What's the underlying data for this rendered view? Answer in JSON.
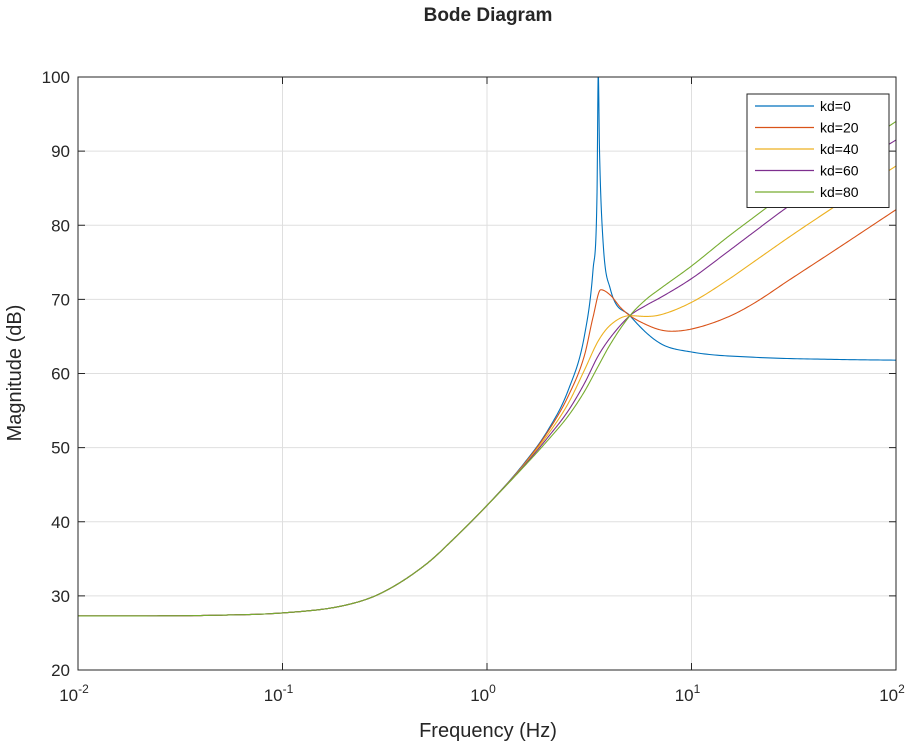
{
  "chart_data": {
    "type": "line",
    "title": "Bode Diagram",
    "xlabel": "Frequency (Hz)",
    "ylabel": "Magnitude (dB)",
    "x_scale": "log",
    "xlim": [
      0.01,
      100
    ],
    "ylim": [
      20,
      100
    ],
    "x_ticks": [
      {
        "base": "10",
        "exp": "-2",
        "value": 0.01
      },
      {
        "base": "10",
        "exp": "-1",
        "value": 0.1
      },
      {
        "base": "10",
        "exp": "0",
        "value": 1
      },
      {
        "base": "10",
        "exp": "1",
        "value": 10
      },
      {
        "base": "10",
        "exp": "2",
        "value": 100
      }
    ],
    "y_ticks": [
      "20",
      "30",
      "40",
      "50",
      "60",
      "70",
      "80",
      "90",
      "100"
    ],
    "grid": true,
    "legend_position": "top-right",
    "series": [
      {
        "name": "kd=0",
        "color": "#0072BD",
        "x": [
          0.01,
          0.02,
          0.05,
          0.1,
          0.2,
          0.3,
          0.5,
          0.7,
          1.0,
          1.5,
          2.0,
          2.5,
          3.0,
          3.3,
          3.45,
          3.5,
          3.55,
          3.7,
          4.0,
          5.0,
          7.0,
          10,
          20,
          50,
          100
        ],
        "y": [
          27.3,
          27.3,
          27.4,
          27.7,
          28.7,
          30.3,
          34.2,
          37.9,
          42.2,
          47.7,
          52.5,
          57.8,
          65.2,
          74.0,
          84.0,
          100.5,
          90.0,
          77.5,
          71.5,
          67.8,
          64.1,
          62.9,
          62.2,
          61.9,
          61.8
        ]
      },
      {
        "name": "kd=20",
        "color": "#D95319",
        "x": [
          0.01,
          0.02,
          0.05,
          0.1,
          0.2,
          0.3,
          0.5,
          0.7,
          1.0,
          1.5,
          2.0,
          2.5,
          3.0,
          3.3,
          3.6,
          4.0,
          4.5,
          5.0,
          6.0,
          7.0,
          8.0,
          10,
          15,
          20,
          30,
          50,
          100
        ],
        "y": [
          27.3,
          27.3,
          27.4,
          27.7,
          28.7,
          30.3,
          34.2,
          37.9,
          42.2,
          47.6,
          52.3,
          57.0,
          62.5,
          67.6,
          71.3,
          70.6,
          68.9,
          67.8,
          66.6,
          65.9,
          65.7,
          66.0,
          67.6,
          69.4,
          72.6,
          76.6,
          82.1
        ]
      },
      {
        "name": "kd=40",
        "color": "#EDB120",
        "x": [
          0.01,
          0.02,
          0.05,
          0.1,
          0.2,
          0.3,
          0.5,
          0.7,
          1.0,
          1.5,
          2.0,
          2.5,
          3.0,
          3.5,
          4.0,
          5.0,
          6.0,
          7.0,
          10,
          15,
          20,
          30,
          50,
          100
        ],
        "y": [
          27.3,
          27.3,
          27.4,
          27.7,
          28.7,
          30.3,
          34.2,
          37.9,
          42.2,
          47.5,
          51.9,
          56.0,
          60.5,
          64.4,
          66.5,
          67.8,
          67.7,
          67.9,
          69.6,
          72.6,
          75.0,
          78.4,
          82.5,
          88.0
        ]
      },
      {
        "name": "kd=60",
        "color": "#7E2F8E",
        "x": [
          0.01,
          0.02,
          0.05,
          0.1,
          0.2,
          0.3,
          0.5,
          0.7,
          1.0,
          1.5,
          2.0,
          2.5,
          3.0,
          3.5,
          4.0,
          5.0,
          6.0,
          7.0,
          10,
          15,
          20,
          30,
          50,
          100
        ],
        "y": [
          27.3,
          27.3,
          27.4,
          27.7,
          28.7,
          30.3,
          34.2,
          37.9,
          42.2,
          47.4,
          51.5,
          55.0,
          58.7,
          62.4,
          64.8,
          67.8,
          69.2,
          70.2,
          72.8,
          76.4,
          79.0,
          82.6,
          86.5,
          91.5
        ]
      },
      {
        "name": "kd=80",
        "color": "#77AC30",
        "x": [
          0.01,
          0.02,
          0.05,
          0.1,
          0.2,
          0.3,
          0.5,
          0.7,
          1.0,
          1.5,
          2.0,
          2.5,
          3.0,
          3.5,
          4.0,
          5.0,
          6.0,
          7.0,
          10,
          15,
          20,
          30,
          50,
          100
        ],
        "y": [
          27.3,
          27.3,
          27.4,
          27.7,
          28.7,
          30.3,
          34.2,
          37.9,
          42.2,
          47.3,
          51.1,
          54.3,
          57.6,
          61.0,
          63.9,
          67.8,
          70.0,
          71.4,
          74.5,
          78.4,
          81.0,
          84.6,
          88.5,
          94.0
        ]
      }
    ]
  }
}
